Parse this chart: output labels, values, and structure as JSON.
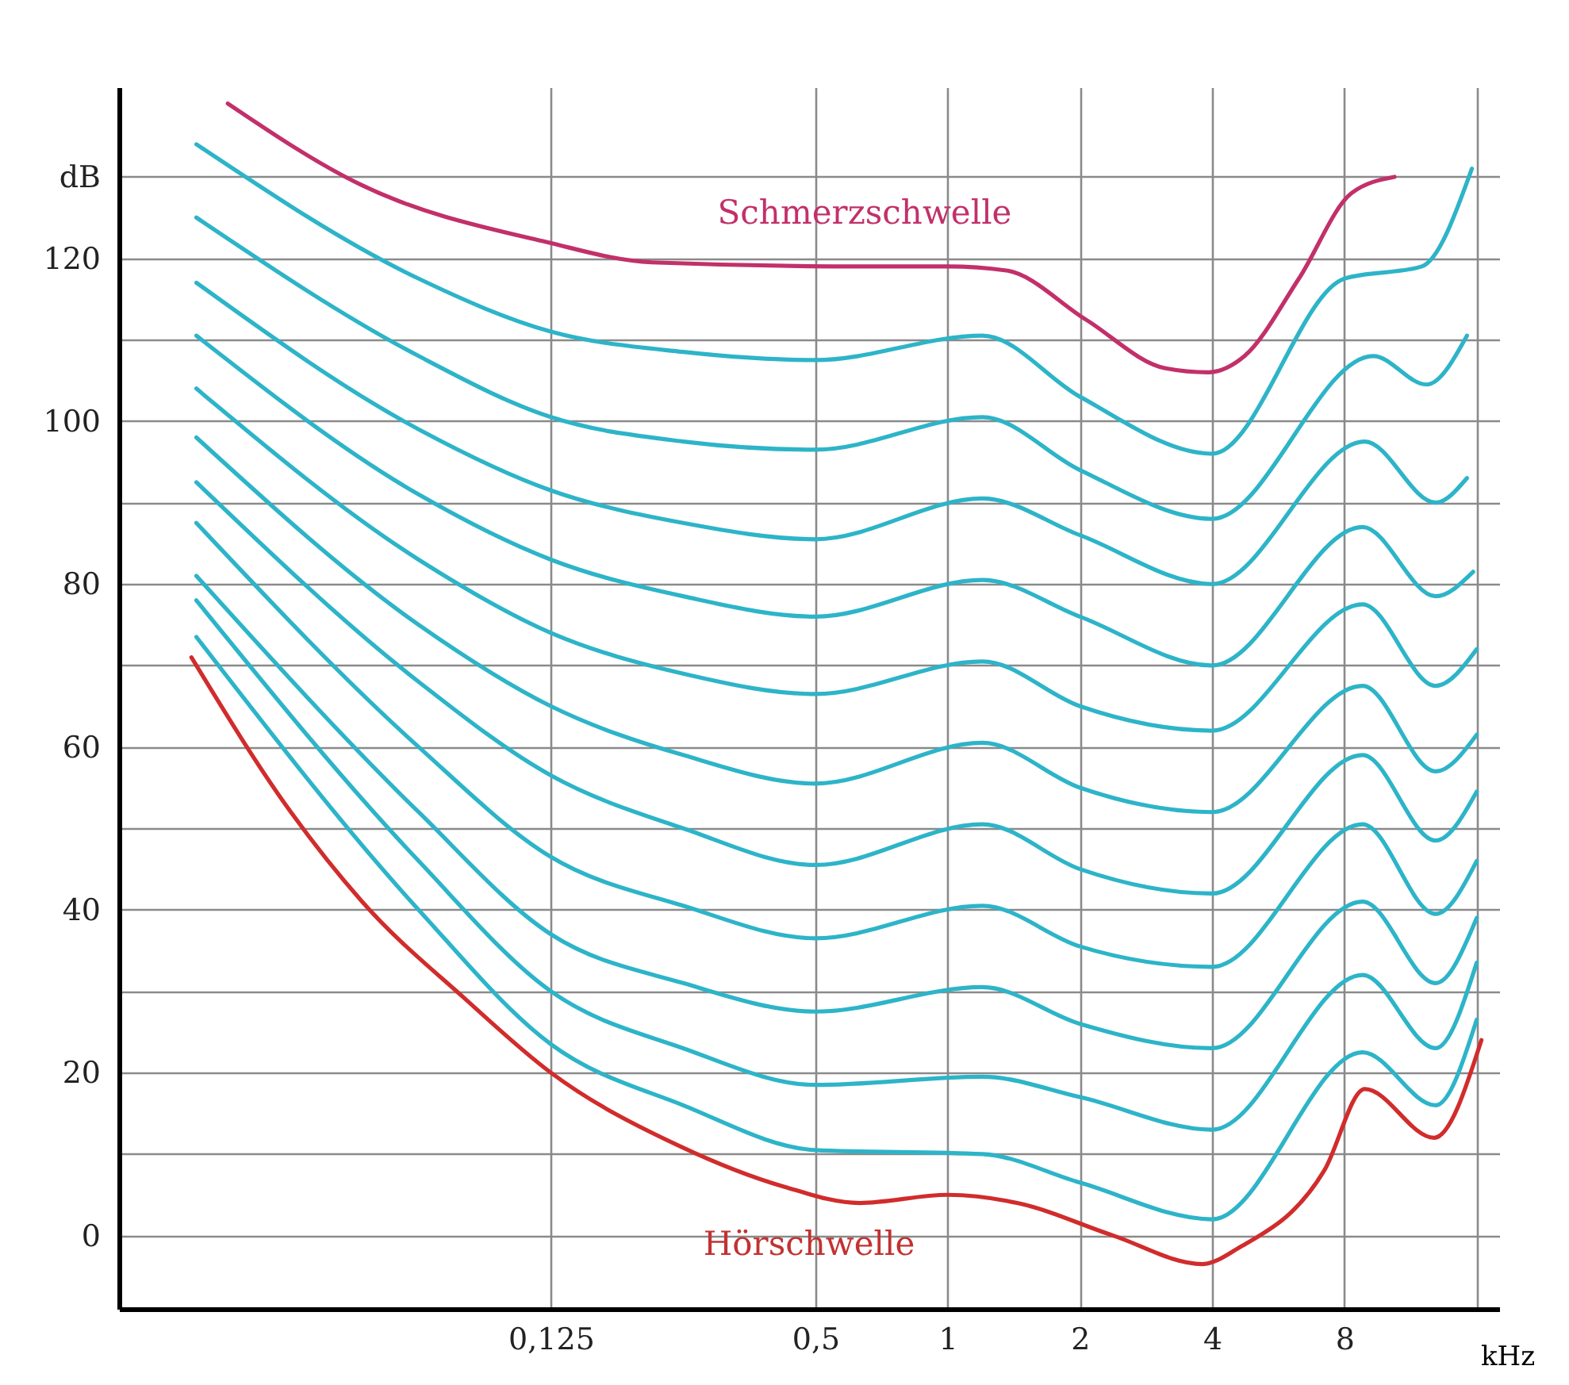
{
  "chart_data": {
    "type": "line",
    "xlabel": "kHz",
    "log": "x",
    "grid": true,
    "legend": false,
    "xlim": [
      0.013,
      18
    ],
    "xticks": [
      {
        "value": 0.125,
        "label": "0,125"
      },
      {
        "value": 0.5,
        "label": "0,5"
      },
      1,
      2,
      4,
      8,
      {
        "value": 16,
        "label": null
      }
    ],
    "ylim": [
      -9,
      141
    ],
    "yticks": [
      0,
      {
        "value": 10,
        "label": null
      },
      20,
      {
        "value": 30,
        "label": null
      },
      40,
      {
        "value": 50,
        "label": null
      },
      60,
      {
        "value": 70,
        "label": null
      },
      80,
      {
        "value": 90,
        "label": null
      },
      100,
      {
        "value": 110,
        "label": null
      },
      120,
      {
        "value": 130,
        "label": "dB"
      }
    ],
    "annotations": [
      "Schmerzschwelle",
      "Hörschwelle"
    ],
    "series": [
      {
        "color": "#c2306a",
        "x": [
          0.023,
          0.0463,
          0.122,
          0.212,
          0.63,
          1.0,
          1.36,
          2.06,
          3.13,
          3.92,
          4.74,
          6.3,
          8.3,
          10.4
        ],
        "values": [
          139,
          129,
          122,
          119.5,
          119,
          119,
          118.5,
          112.5,
          106.5,
          106,
          108,
          117.5,
          128,
          130
        ]
      },
      {
        "color": "#2db4c8",
        "x": [
          0.0195,
          0.0625,
          0.125,
          0.25,
          0.5,
          1.2,
          2,
          4,
          8,
          12,
          15.6
        ],
        "values": [
          134,
          117.5,
          111,
          108.5,
          107.5,
          110.5,
          103,
          96,
          117.5,
          119,
          131
        ]
      },
      {
        "color": "#2db4c8",
        "x": [
          0.0195,
          0.0625,
          0.125,
          0.25,
          0.5,
          1.2,
          2,
          4,
          9.3,
          12.3,
          15.2
        ],
        "values": [
          125,
          108,
          100.5,
          97.5,
          96.5,
          100.5,
          94,
          88,
          108,
          104.5,
          110.5
        ]
      },
      {
        "color": "#2db4c8",
        "x": [
          0.0195,
          0.0625,
          0.125,
          0.25,
          0.5,
          1.2,
          2,
          4,
          8.9,
          12.9,
          15.2
        ],
        "values": [
          117,
          99,
          91.5,
          87.5,
          85.5,
          90.5,
          86,
          80,
          97.5,
          90,
          93
        ]
      },
      {
        "color": "#2db4c8",
        "x": [
          0.0195,
          0.0625,
          0.125,
          0.25,
          0.5,
          1.2,
          2,
          4,
          8.8,
          12.9,
          15.7
        ],
        "values": [
          110.5,
          91,
          83,
          78.5,
          76,
          80.5,
          76,
          70,
          87,
          78.5,
          81.5
        ]
      },
      {
        "color": "#2db4c8",
        "x": [
          0.0195,
          0.0625,
          0.125,
          0.25,
          0.5,
          1.2,
          2,
          4,
          8.8,
          12.9,
          16
        ],
        "values": [
          104,
          83,
          74,
          69,
          66.5,
          70.5,
          65,
          62,
          77.5,
          67.5,
          72
        ]
      },
      {
        "color": "#2db4c8",
        "x": [
          0.0195,
          0.0625,
          0.125,
          0.25,
          0.5,
          1.2,
          2,
          4,
          8.8,
          12.9,
          16
        ],
        "values": [
          98,
          75,
          65,
          59,
          55.5,
          60.5,
          55,
          52,
          67.5,
          57,
          61.5
        ]
      },
      {
        "color": "#2db4c8",
        "x": [
          0.0195,
          0.0625,
          0.125,
          0.25,
          0.5,
          1.2,
          2,
          4,
          8.8,
          12.9,
          16
        ],
        "values": [
          92.5,
          68,
          56.5,
          50,
          45.5,
          50.5,
          45,
          42,
          59,
          48.5,
          54.5
        ]
      },
      {
        "color": "#2db4c8",
        "x": [
          0.0195,
          0.0625,
          0.125,
          0.25,
          0.5,
          1.2,
          2,
          4,
          8.8,
          12.9,
          16
        ],
        "values": [
          87.5,
          60,
          46.5,
          40.5,
          36.5,
          40.5,
          35.5,
          33,
          50.5,
          39.5,
          46
        ]
      },
      {
        "color": "#2db4c8",
        "x": [
          0.0195,
          0.0625,
          0.125,
          0.25,
          0.5,
          1.2,
          2,
          4,
          8.8,
          12.9,
          16
        ],
        "values": [
          81,
          52,
          37,
          31,
          27.5,
          30.5,
          26,
          23,
          41,
          31,
          39
        ]
      },
      {
        "color": "#2db4c8",
        "x": [
          0.0195,
          0.0625,
          0.125,
          0.25,
          0.5,
          1.2,
          2,
          4,
          8.8,
          12.9,
          16
        ],
        "values": [
          78,
          46,
          30,
          23,
          18.5,
          19.5,
          17,
          13,
          32,
          23,
          33.5
        ]
      },
      {
        "color": "#2db4c8",
        "x": [
          0.0195,
          0.0625,
          0.125,
          0.25,
          0.5,
          1.2,
          2,
          4,
          8.8,
          12.9,
          16
        ],
        "values": [
          73.5,
          40,
          23.5,
          16,
          10.5,
          10,
          6.5,
          2,
          22.5,
          16,
          26.5
        ]
      },
      {
        "color": "#d12c2c",
        "x": [
          0.019,
          0.032,
          0.0465,
          0.08,
          0.125,
          0.245,
          0.424,
          0.63,
          1.0,
          1.44,
          2.38,
          3.8,
          4.6,
          7.2,
          8.9,
          12.8,
          16.4
        ],
        "values": [
          71,
          52,
          41,
          29,
          20,
          11,
          6,
          4,
          5,
          4,
          0,
          -3.5,
          -1.5,
          8,
          18,
          12,
          24
        ]
      }
    ]
  }
}
